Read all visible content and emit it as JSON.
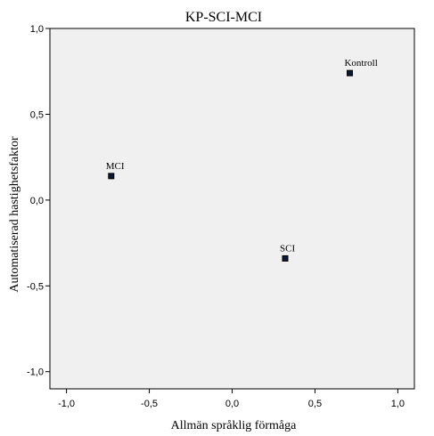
{
  "chart_data": {
    "type": "scatter",
    "title": "KP-SCI-MCI",
    "xlabel": "Allmän språklig förmåga",
    "ylabel": "Automatiserad hastighetsfaktor",
    "xlim": [
      -1.1,
      1.1
    ],
    "ylim": [
      -1.1,
      1.0
    ],
    "xticks": [
      -1.0,
      -0.5,
      0.0,
      0.5,
      1.0
    ],
    "xtick_labels": [
      "-1,0",
      "-0,5",
      "0,0",
      "0,5",
      "1,0"
    ],
    "yticks": [
      -1.0,
      -0.5,
      0.0,
      0.5,
      1.0
    ],
    "ytick_labels": [
      "-1,0",
      "-0,5",
      "0,0",
      "0,5",
      "1,0"
    ],
    "grid": false,
    "plot_background": "#f0f0f0",
    "marker_color": "#0a1a33",
    "points": [
      {
        "label": "Kontroll",
        "x": 0.71,
        "y": 0.74
      },
      {
        "label": "MCI",
        "x": -0.73,
        "y": 0.14
      },
      {
        "label": "SCI",
        "x": 0.32,
        "y": -0.34
      }
    ]
  }
}
